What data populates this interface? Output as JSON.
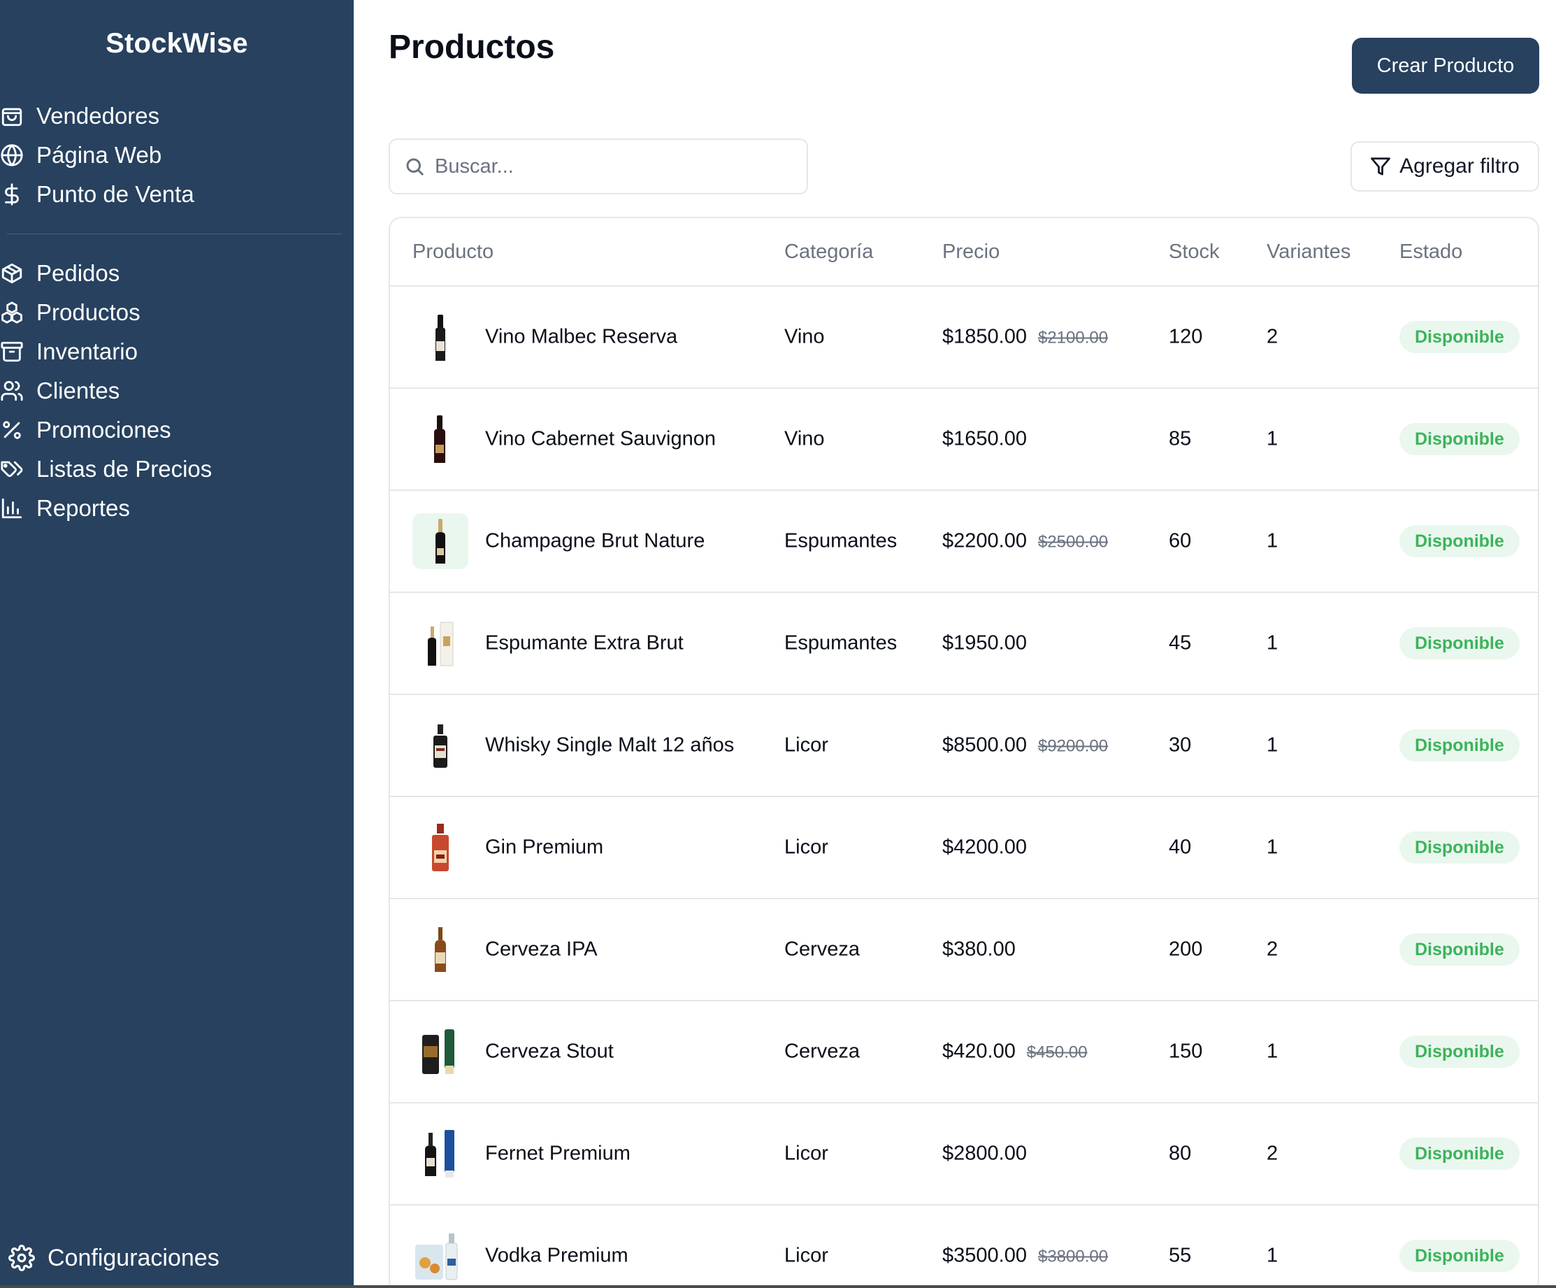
{
  "app": {
    "brand": "StockWise"
  },
  "sidebar": {
    "group1": [
      {
        "label": "Vendedores",
        "icon": "store-icon"
      },
      {
        "label": "Página Web",
        "icon": "globe-icon"
      },
      {
        "label": "Punto de Venta",
        "icon": "dollar-icon"
      }
    ],
    "group2": [
      {
        "label": "Pedidos",
        "icon": "package-icon"
      },
      {
        "label": "Productos",
        "icon": "boxes-icon"
      },
      {
        "label": "Inventario",
        "icon": "archive-icon"
      },
      {
        "label": "Clientes",
        "icon": "users-icon"
      },
      {
        "label": "Promociones",
        "icon": "percent-icon"
      },
      {
        "label": "Listas de Precios",
        "icon": "tags-icon"
      },
      {
        "label": "Reportes",
        "icon": "bar-chart-icon"
      }
    ],
    "settings": {
      "label": "Configuraciones",
      "icon": "gear-icon"
    }
  },
  "header": {
    "title": "Productos",
    "create_button": "Crear Producto"
  },
  "search": {
    "placeholder": "Buscar...",
    "value": ""
  },
  "filter": {
    "label": "Agregar filtro"
  },
  "table": {
    "columns": [
      "Producto",
      "Categoría",
      "Precio",
      "Stock",
      "Variantes",
      "Estado"
    ],
    "rows": [
      {
        "name": "Vino Malbec Reserva",
        "category": "Vino",
        "price": "$1850.00",
        "old_price": "$2100.00",
        "stock": "120",
        "variants": "2",
        "status": "Disponible"
      },
      {
        "name": "Vino Cabernet Sauvignon",
        "category": "Vino",
        "price": "$1650.00",
        "old_price": "",
        "stock": "85",
        "variants": "1",
        "status": "Disponible"
      },
      {
        "name": "Champagne Brut Nature",
        "category": "Espumantes",
        "price": "$2200.00",
        "old_price": "$2500.00",
        "stock": "60",
        "variants": "1",
        "status": "Disponible"
      },
      {
        "name": "Espumante Extra Brut",
        "category": "Espumantes",
        "price": "$1950.00",
        "old_price": "",
        "stock": "45",
        "variants": "1",
        "status": "Disponible"
      },
      {
        "name": "Whisky Single Malt 12 años",
        "category": "Licor",
        "price": "$8500.00",
        "old_price": "$9200.00",
        "stock": "30",
        "variants": "1",
        "status": "Disponible"
      },
      {
        "name": "Gin Premium",
        "category": "Licor",
        "price": "$4200.00",
        "old_price": "",
        "stock": "40",
        "variants": "1",
        "status": "Disponible"
      },
      {
        "name": "Cerveza IPA",
        "category": "Cerveza",
        "price": "$380.00",
        "old_price": "",
        "stock": "200",
        "variants": "2",
        "status": "Disponible"
      },
      {
        "name": "Cerveza Stout",
        "category": "Cerveza",
        "price": "$420.00",
        "old_price": "$450.00",
        "stock": "150",
        "variants": "1",
        "status": "Disponible"
      },
      {
        "name": "Fernet Premium",
        "category": "Licor",
        "price": "$2800.00",
        "old_price": "",
        "stock": "80",
        "variants": "2",
        "status": "Disponible"
      },
      {
        "name": "Vodka Premium",
        "category": "Licor",
        "price": "$3500.00",
        "old_price": "$3800.00",
        "stock": "55",
        "variants": "1",
        "status": "Disponible"
      }
    ]
  },
  "colors": {
    "sidebar": "#27415f",
    "primary_button": "#27415f",
    "badge_bg": "#eaf7ee",
    "badge_text": "#3bb45b",
    "border": "#e4e6ea"
  }
}
